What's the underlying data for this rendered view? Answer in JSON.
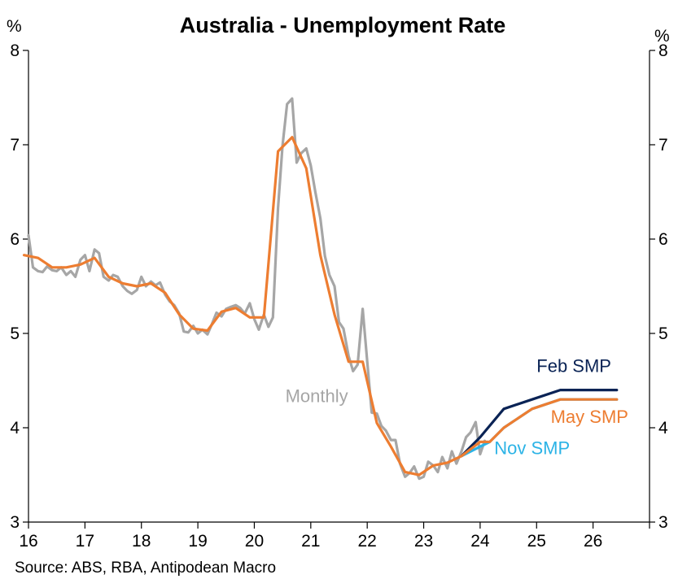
{
  "chart_data": {
    "type": "line",
    "title": "Australia - Unemployment Rate",
    "y_unit_left": "%",
    "y_unit_right": "%",
    "xlim": [
      16,
      27
    ],
    "ylim": [
      3,
      8
    ],
    "x_ticks": [
      {
        "value": 16,
        "label": "16"
      },
      {
        "value": 17,
        "label": "17"
      },
      {
        "value": 18,
        "label": "18"
      },
      {
        "value": 19,
        "label": "19"
      },
      {
        "value": 20,
        "label": "20"
      },
      {
        "value": 21,
        "label": "21"
      },
      {
        "value": 22,
        "label": "22"
      },
      {
        "value": 23,
        "label": "23"
      },
      {
        "value": 24,
        "label": "24"
      },
      {
        "value": 25,
        "label": "25"
      },
      {
        "value": 26,
        "label": "26"
      }
    ],
    "y_ticks": [
      {
        "value": 3,
        "label": "3"
      },
      {
        "value": 4,
        "label": "4"
      },
      {
        "value": 5,
        "label": "5"
      },
      {
        "value": 6,
        "label": "6"
      },
      {
        "value": 7,
        "label": "7"
      },
      {
        "value": 8,
        "label": "8"
      }
    ],
    "grid": false,
    "source": "Source: ABS, RBA, Antipodean Macro",
    "series": [
      {
        "name": "Monthly",
        "color": "#A6A6A6",
        "label_x": 20.55,
        "label_y": 4.27,
        "points": [
          [
            16.0,
            6.04
          ],
          [
            16.08,
            5.7
          ],
          [
            16.17,
            5.66
          ],
          [
            16.25,
            5.65
          ],
          [
            16.33,
            5.71
          ],
          [
            16.42,
            5.67
          ],
          [
            16.5,
            5.66
          ],
          [
            16.58,
            5.7
          ],
          [
            16.67,
            5.62
          ],
          [
            16.75,
            5.66
          ],
          [
            16.83,
            5.6
          ],
          [
            16.92,
            5.78
          ],
          [
            17.0,
            5.83
          ],
          [
            17.08,
            5.66
          ],
          [
            17.17,
            5.89
          ],
          [
            17.25,
            5.85
          ],
          [
            17.33,
            5.6
          ],
          [
            17.42,
            5.56
          ],
          [
            17.5,
            5.62
          ],
          [
            17.58,
            5.6
          ],
          [
            17.67,
            5.5
          ],
          [
            17.75,
            5.45
          ],
          [
            17.83,
            5.42
          ],
          [
            17.92,
            5.46
          ],
          [
            18.0,
            5.6
          ],
          [
            18.08,
            5.5
          ],
          [
            18.17,
            5.55
          ],
          [
            18.25,
            5.51
          ],
          [
            18.33,
            5.54
          ],
          [
            18.42,
            5.41
          ],
          [
            18.5,
            5.34
          ],
          [
            18.58,
            5.3
          ],
          [
            18.67,
            5.21
          ],
          [
            18.75,
            5.02
          ],
          [
            18.83,
            5.01
          ],
          [
            18.92,
            5.08
          ],
          [
            19.0,
            5.0
          ],
          [
            19.08,
            5.04
          ],
          [
            19.17,
            4.99
          ],
          [
            19.25,
            5.1
          ],
          [
            19.33,
            5.22
          ],
          [
            19.42,
            5.18
          ],
          [
            19.5,
            5.26
          ],
          [
            19.58,
            5.28
          ],
          [
            19.67,
            5.3
          ],
          [
            19.75,
            5.27
          ],
          [
            19.83,
            5.21
          ],
          [
            19.92,
            5.32
          ],
          [
            20.0,
            5.15
          ],
          [
            20.08,
            5.04
          ],
          [
            20.17,
            5.2
          ],
          [
            20.25,
            5.07
          ],
          [
            20.33,
            5.17
          ],
          [
            20.42,
            6.33
          ],
          [
            20.5,
            6.99
          ],
          [
            20.58,
            7.43
          ],
          [
            20.67,
            7.49
          ],
          [
            20.75,
            6.81
          ],
          [
            20.83,
            6.91
          ],
          [
            20.92,
            6.96
          ],
          [
            21.0,
            6.78
          ],
          [
            21.08,
            6.5
          ],
          [
            21.17,
            6.22
          ],
          [
            21.25,
            5.82
          ],
          [
            21.33,
            5.62
          ],
          [
            21.42,
            5.5
          ],
          [
            21.5,
            5.12
          ],
          [
            21.58,
            5.05
          ],
          [
            21.67,
            4.76
          ],
          [
            21.75,
            4.6
          ],
          [
            21.83,
            4.67
          ],
          [
            21.92,
            5.26
          ],
          [
            22.0,
            4.7
          ],
          [
            22.08,
            4.16
          ],
          [
            22.17,
            4.15
          ],
          [
            22.25,
            4.02
          ],
          [
            22.33,
            3.97
          ],
          [
            22.42,
            3.87
          ],
          [
            22.5,
            3.87
          ],
          [
            22.58,
            3.62
          ],
          [
            22.67,
            3.48
          ],
          [
            22.75,
            3.52
          ],
          [
            22.83,
            3.59
          ],
          [
            22.92,
            3.46
          ],
          [
            23.0,
            3.48
          ],
          [
            23.08,
            3.64
          ],
          [
            23.17,
            3.6
          ],
          [
            23.25,
            3.53
          ],
          [
            23.33,
            3.69
          ],
          [
            23.42,
            3.57
          ],
          [
            23.5,
            3.75
          ],
          [
            23.58,
            3.62
          ],
          [
            23.67,
            3.75
          ],
          [
            23.75,
            3.9
          ],
          [
            23.83,
            3.95
          ],
          [
            23.92,
            4.06
          ],
          [
            24.0,
            3.72
          ],
          [
            24.08,
            3.86
          ]
        ]
      },
      {
        "name": "Nov SMP",
        "color": "#2BB3E6",
        "label_x": 24.25,
        "label_y": 3.72,
        "points": [
          [
            23.67,
            3.7
          ],
          [
            24.0,
            3.8
          ],
          [
            24.17,
            3.85
          ],
          [
            24.42,
            4.0
          ],
          [
            24.92,
            4.2
          ],
          [
            25.42,
            4.3
          ],
          [
            26.42,
            4.3
          ]
        ]
      },
      {
        "name": "Feb SMP",
        "color": "#0A2355",
        "label_x": 25.0,
        "label_y": 4.59,
        "points": [
          [
            23.67,
            3.7
          ],
          [
            24.0,
            3.9
          ],
          [
            24.42,
            4.2
          ],
          [
            24.92,
            4.3
          ],
          [
            25.42,
            4.4
          ],
          [
            26.42,
            4.4
          ]
        ]
      },
      {
        "name": "May SMP",
        "color": "#ED7D31",
        "label_x": 25.25,
        "label_y": 4.05,
        "points": [
          [
            15.92,
            5.83
          ],
          [
            16.17,
            5.8
          ],
          [
            16.42,
            5.7
          ],
          [
            16.67,
            5.7
          ],
          [
            16.92,
            5.73
          ],
          [
            17.17,
            5.8
          ],
          [
            17.42,
            5.6
          ],
          [
            17.67,
            5.53
          ],
          [
            17.92,
            5.5
          ],
          [
            18.17,
            5.53
          ],
          [
            18.42,
            5.43
          ],
          [
            18.67,
            5.2
          ],
          [
            18.92,
            5.05
          ],
          [
            19.17,
            5.03
          ],
          [
            19.42,
            5.23
          ],
          [
            19.67,
            5.27
          ],
          [
            19.92,
            5.17
          ],
          [
            20.17,
            5.17
          ],
          [
            20.42,
            6.93
          ],
          [
            20.67,
            7.08
          ],
          [
            20.92,
            6.75
          ],
          [
            21.17,
            5.83
          ],
          [
            21.42,
            5.2
          ],
          [
            21.67,
            4.7
          ],
          [
            21.92,
            4.7
          ],
          [
            22.17,
            4.05
          ],
          [
            22.42,
            3.8
          ],
          [
            22.67,
            3.53
          ],
          [
            22.92,
            3.5
          ],
          [
            23.17,
            3.6
          ],
          [
            23.42,
            3.63
          ],
          [
            23.67,
            3.7
          ],
          [
            24.0,
            3.85
          ],
          [
            24.17,
            3.85
          ],
          [
            24.42,
            4.0
          ],
          [
            24.92,
            4.2
          ],
          [
            25.42,
            4.3
          ],
          [
            26.42,
            4.3
          ]
        ]
      }
    ]
  }
}
